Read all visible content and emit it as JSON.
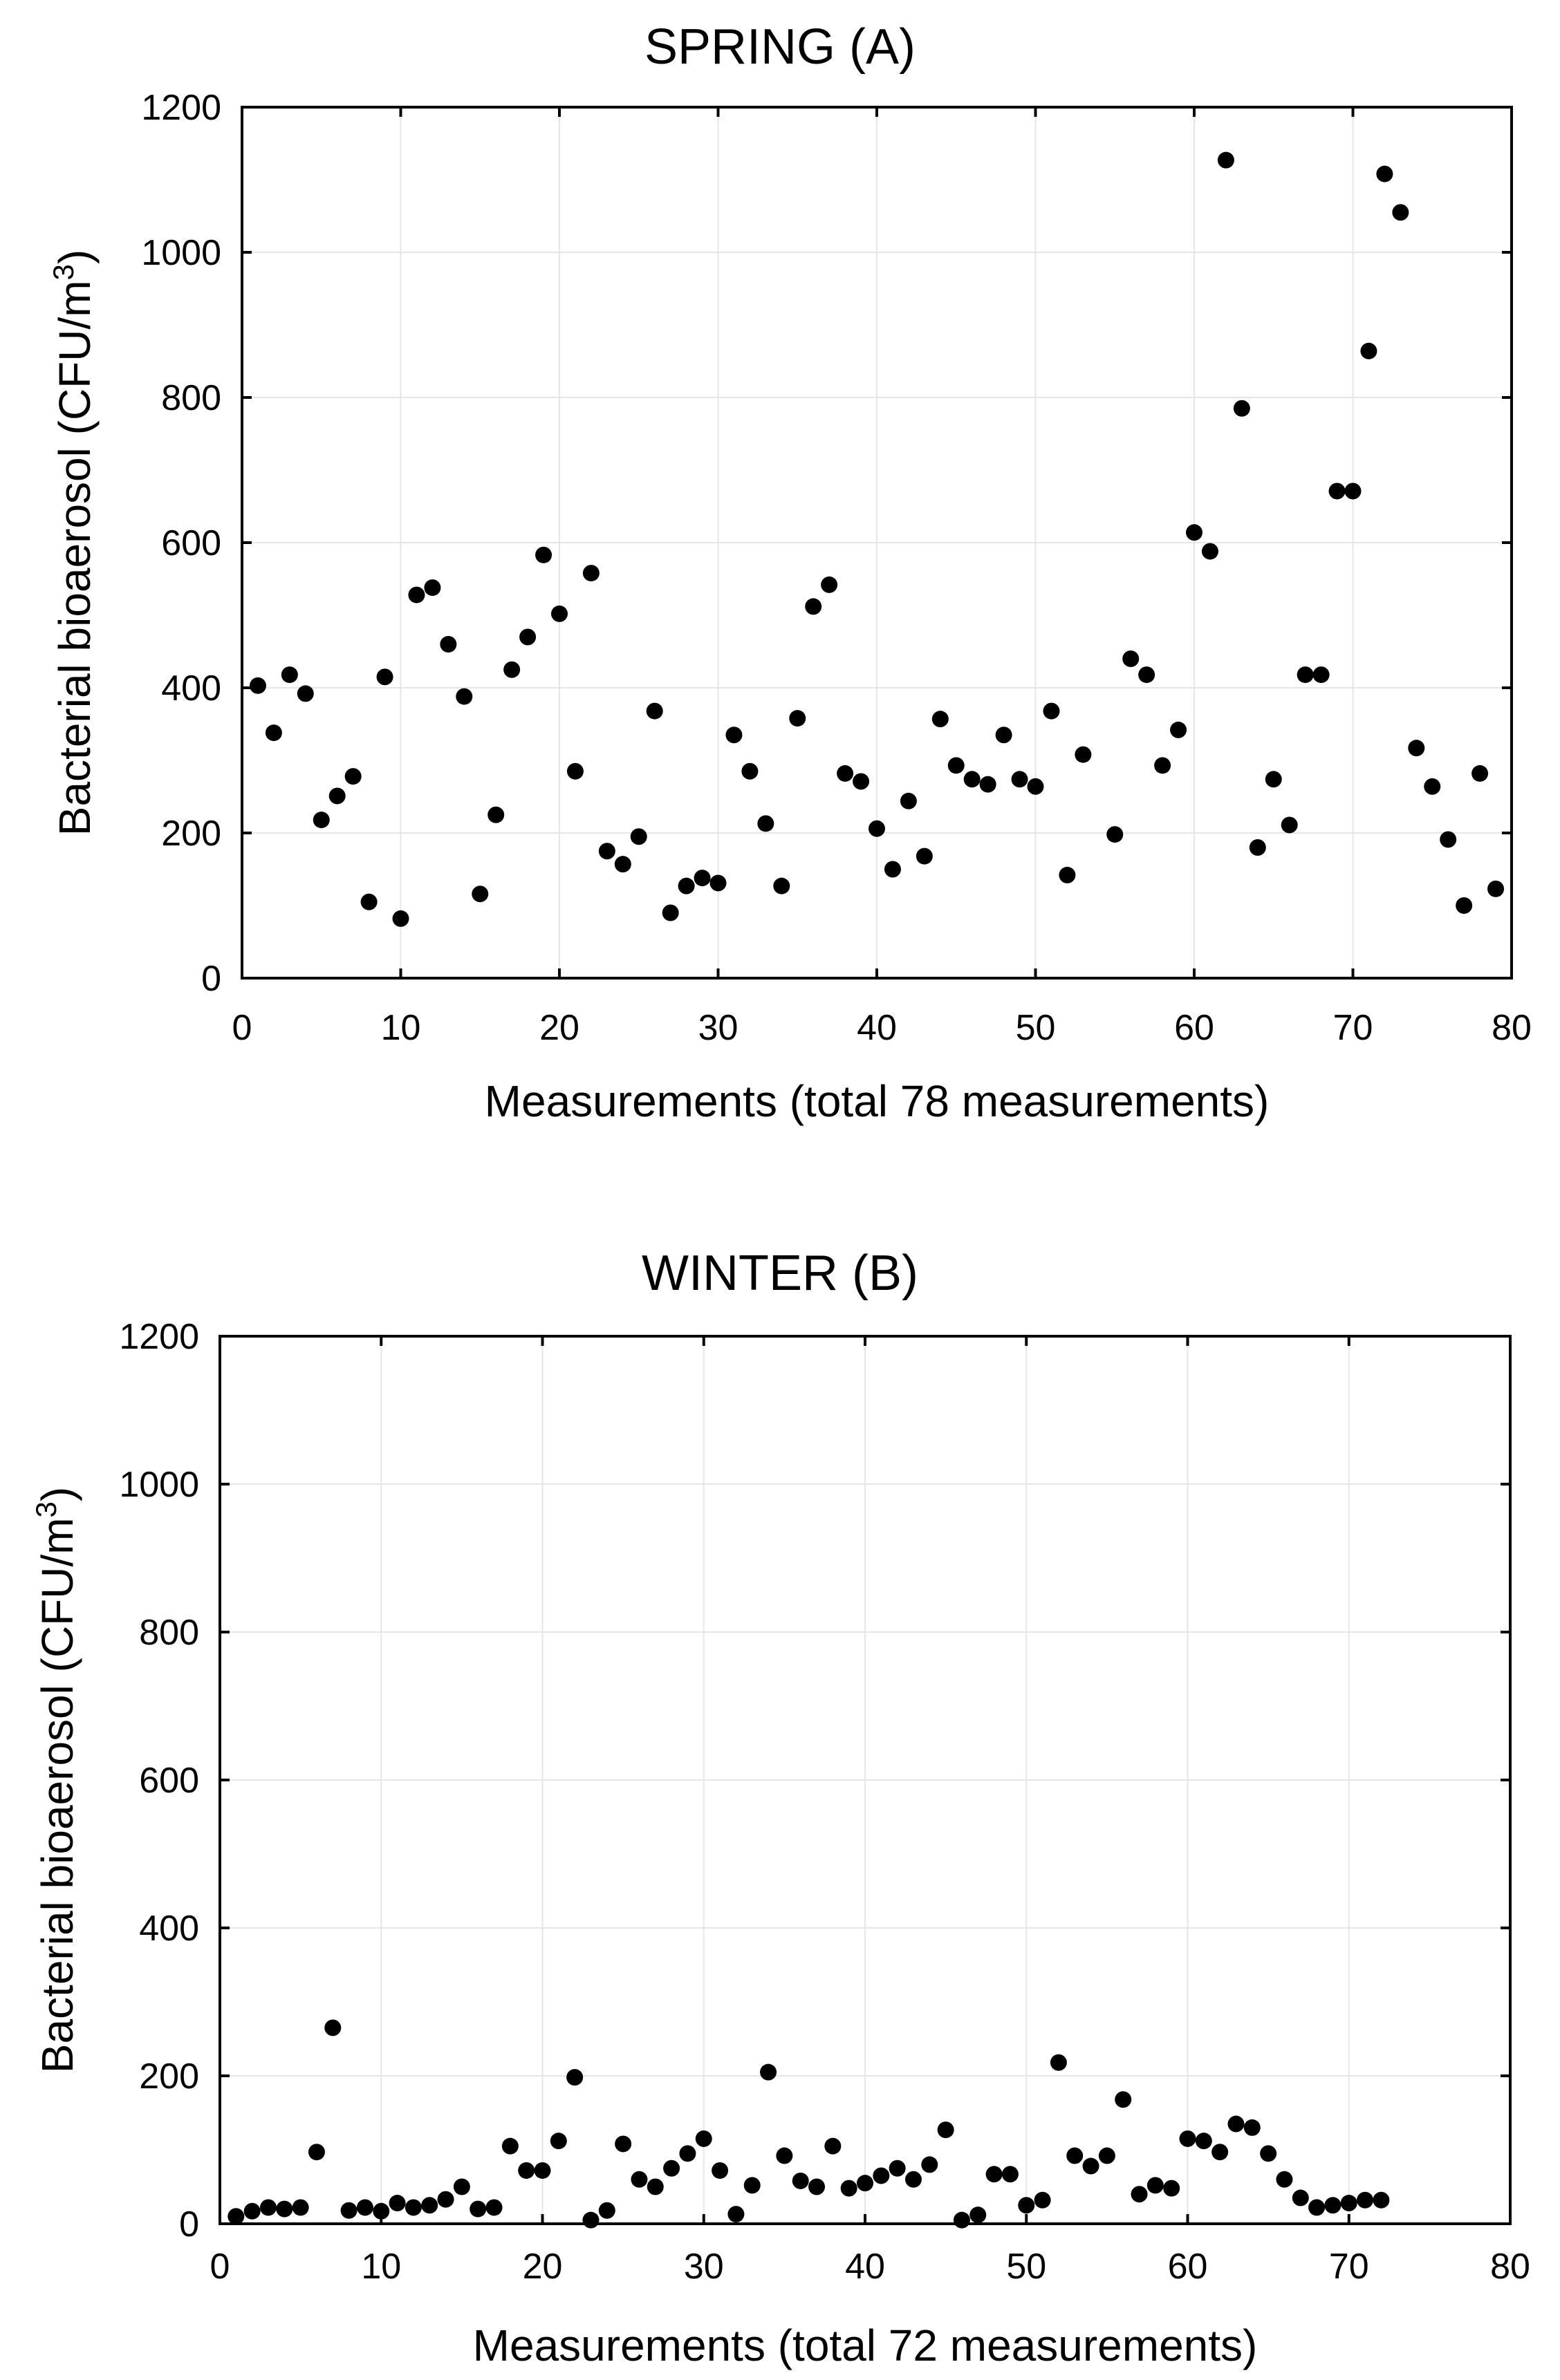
{
  "charts": [
    {
      "title": "SPRING (A)",
      "ylabel_main": "Bacterial bioaerosol (CFU/m",
      "ylabel_sup": "3",
      "ylabel_end": ")",
      "xlabel": "Measurements (total 78 measurements)",
      "x_ticks": [
        "0",
        "10",
        "20",
        "30",
        "40",
        "50",
        "60",
        "70",
        "80"
      ],
      "y_ticks": [
        "0",
        "200",
        "400",
        "600",
        "800",
        "1000",
        "1200"
      ]
    },
    {
      "title": "WINTER (B)",
      "ylabel_main": "Bacterial bioaerosol (CFU/m",
      "ylabel_sup": "3",
      "ylabel_end": ")",
      "xlabel": "Measurements (total 72 measurements)",
      "x_ticks": [
        "0",
        "10",
        "20",
        "30",
        "40",
        "50",
        "60",
        "70",
        "80"
      ],
      "y_ticks": [
        "0",
        "200",
        "400",
        "600",
        "800",
        "1000",
        "1200"
      ]
    }
  ],
  "chart_data": [
    {
      "type": "scatter",
      "title": "SPRING (A)",
      "xlabel": "Measurements (total 78 measurements)",
      "ylabel": "Bacterial bioaerosol (CFU/m3)",
      "xlim": [
        0,
        80
      ],
      "ylim": [
        0,
        1200
      ],
      "x_tick_step": 10,
      "y_tick_step": 200,
      "grid": true,
      "marker_color": "#000000",
      "x": [
        1,
        2,
        3,
        4,
        5,
        6,
        7,
        8,
        9,
        10,
        11,
        12,
        13,
        14,
        15,
        16,
        17,
        18,
        19,
        20,
        21,
        22,
        23,
        24,
        25,
        26,
        27,
        28,
        29,
        30,
        31,
        32,
        33,
        34,
        35,
        36,
        37,
        38,
        39,
        40,
        41,
        42,
        43,
        44,
        45,
        46,
        47,
        48,
        49,
        50,
        51,
        52,
        53,
        55,
        56,
        57,
        58,
        59,
        60,
        61,
        62,
        63,
        64,
        65,
        66,
        67,
        68,
        69,
        70,
        71,
        72,
        73,
        74,
        75,
        76,
        77,
        78,
        79
      ],
      "y": [
        403,
        338,
        418,
        392,
        218,
        251,
        278,
        105,
        415,
        82,
        528,
        538,
        460,
        388,
        116,
        225,
        425,
        470,
        583,
        502,
        285,
        558,
        175,
        157,
        195,
        368,
        90,
        127,
        138,
        131,
        335,
        285,
        213,
        127,
        358,
        512,
        542,
        282,
        271,
        206,
        150,
        244,
        168,
        357,
        293,
        274,
        267,
        335,
        274,
        264,
        368,
        142,
        308,
        198,
        440,
        418,
        293,
        342,
        614,
        588,
        1127,
        785,
        180,
        274,
        211,
        418,
        418,
        671,
        671,
        864,
        1108,
        1055,
        317,
        264,
        191,
        100,
        282,
        123
      ]
    },
    {
      "type": "scatter",
      "title": "WINTER (B)",
      "xlabel": "Measurements (total 72 measurements)",
      "ylabel": "Bacterial bioaerosol (CFU/m3)",
      "xlim": [
        0,
        80
      ],
      "ylim": [
        0,
        1200
      ],
      "x_tick_step": 10,
      "y_tick_step": 200,
      "grid": true,
      "marker_color": "#000000",
      "x": [
        1,
        2,
        3,
        4,
        5,
        6,
        7,
        8,
        9,
        10,
        11,
        12,
        13,
        14,
        15,
        16,
        17,
        18,
        19,
        20,
        21,
        22,
        23,
        24,
        25,
        26,
        27,
        28,
        29,
        30,
        31,
        32,
        33,
        34,
        35,
        36,
        37,
        38,
        39,
        40,
        41,
        42,
        43,
        44,
        45,
        46,
        47,
        48,
        49,
        50,
        51,
        52,
        53,
        54,
        55,
        56,
        57,
        58,
        59,
        60,
        61,
        62,
        63,
        64,
        65,
        66,
        67,
        68,
        69,
        70,
        71,
        72
      ],
      "y": [
        10,
        17,
        22,
        20,
        22,
        97,
        265,
        18,
        22,
        17,
        28,
        22,
        25,
        33,
        50,
        20,
        22,
        105,
        72,
        72,
        112,
        198,
        5,
        18,
        108,
        60,
        50,
        75,
        95,
        115,
        72,
        13,
        52,
        205,
        92,
        58,
        50,
        105,
        48,
        55,
        65,
        75,
        60,
        80,
        127,
        5,
        12,
        67,
        67,
        25,
        32,
        218,
        92,
        78,
        92,
        168,
        40,
        52,
        48,
        115,
        112,
        97,
        135,
        130,
        95,
        60,
        35,
        22,
        25,
        28,
        32,
        32
      ]
    }
  ]
}
